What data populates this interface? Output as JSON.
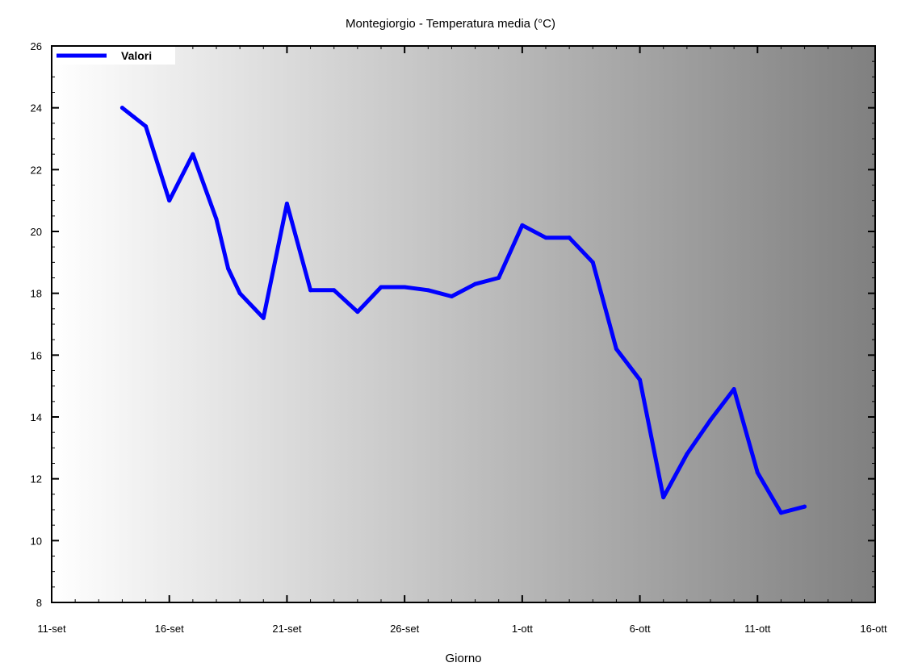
{
  "chart_data": {
    "type": "line",
    "title": "Montegiorgio - Temperatura media (°C)",
    "xlabel": "Giorno",
    "ylabel": "",
    "x_tick_labels": [
      "11-set",
      "16-set",
      "21-set",
      "26-set",
      "1-ott",
      "6-ott",
      "11-ott",
      "16-ott"
    ],
    "x_range_days": [
      0,
      35
    ],
    "ylim": [
      8,
      26
    ],
    "y_ticks": [
      8,
      10,
      12,
      14,
      16,
      18,
      20,
      22,
      24,
      26
    ],
    "grid": false,
    "legend_position": "top-left",
    "series": [
      {
        "name": "Valori",
        "color": "#0000ff",
        "x": [
          3,
          3.5,
          4,
          5,
          6,
          7,
          7.5,
          8,
          9,
          10,
          11,
          12,
          13,
          14,
          15,
          16,
          17,
          18,
          19,
          20,
          21,
          22,
          23,
          24,
          25,
          26,
          27,
          28,
          29,
          30,
          31,
          32
        ],
        "y": [
          24.0,
          23.7,
          23.4,
          21.0,
          22.5,
          20.4,
          18.8,
          18.0,
          17.2,
          20.9,
          18.1,
          18.1,
          17.4,
          18.2,
          18.2,
          18.1,
          17.9,
          18.3,
          18.5,
          20.2,
          19.8,
          19.8,
          19.0,
          16.2,
          15.2,
          11.4,
          12.8,
          13.9,
          14.9,
          12.2,
          10.9,
          11.1
        ]
      }
    ]
  }
}
